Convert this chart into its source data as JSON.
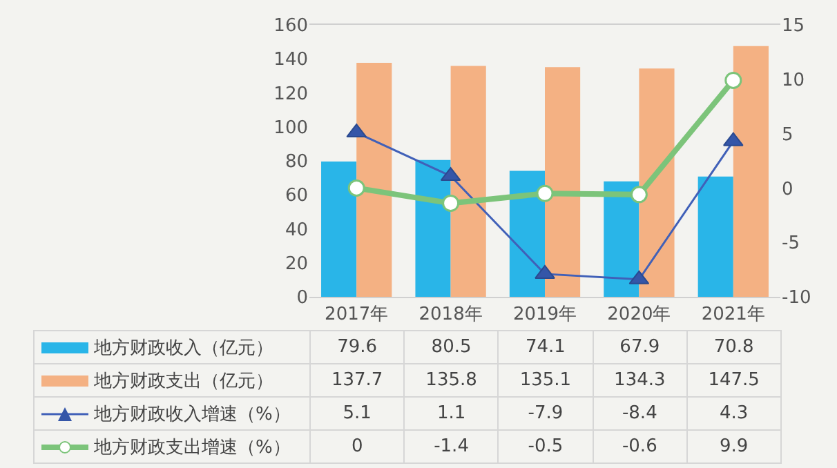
{
  "chart_data": {
    "type": "bar",
    "categories": [
      "2017年",
      "2018年",
      "2019年",
      "2020年",
      "2021年"
    ],
    "series": [
      {
        "name": "地方财政收入（亿元）",
        "color": "#29b5e8",
        "values": [
          79.6,
          80.5,
          74.1,
          67.9,
          70.8
        ]
      },
      {
        "name": "地方财政支出（亿元）",
        "color": "#f4b183",
        "values": [
          137.7,
          135.8,
          135.1,
          134.3,
          147.5
        ]
      },
      {
        "name": "地方财政收入增速（%）",
        "type": "line",
        "axis": "y2",
        "marker": "triangle",
        "color": "#4060b8",
        "values": [
          5.1,
          1.1,
          -7.9,
          -8.4,
          4.3
        ]
      },
      {
        "name": "地方财政支出增速（%）",
        "type": "line",
        "axis": "y2",
        "marker": "circle",
        "color": "#7cc47a",
        "values": [
          0,
          -1.4,
          -0.5,
          -0.6,
          9.9
        ]
      }
    ],
    "ylim": [
      0,
      160
    ],
    "yticks": [
      0,
      20,
      40,
      60,
      80,
      100,
      120,
      140,
      160
    ],
    "y2lim": [
      -10,
      15
    ],
    "y2ticks": [
      -10,
      -5,
      0,
      5,
      10,
      15
    ],
    "data_labels": true,
    "legend": "bottom"
  }
}
